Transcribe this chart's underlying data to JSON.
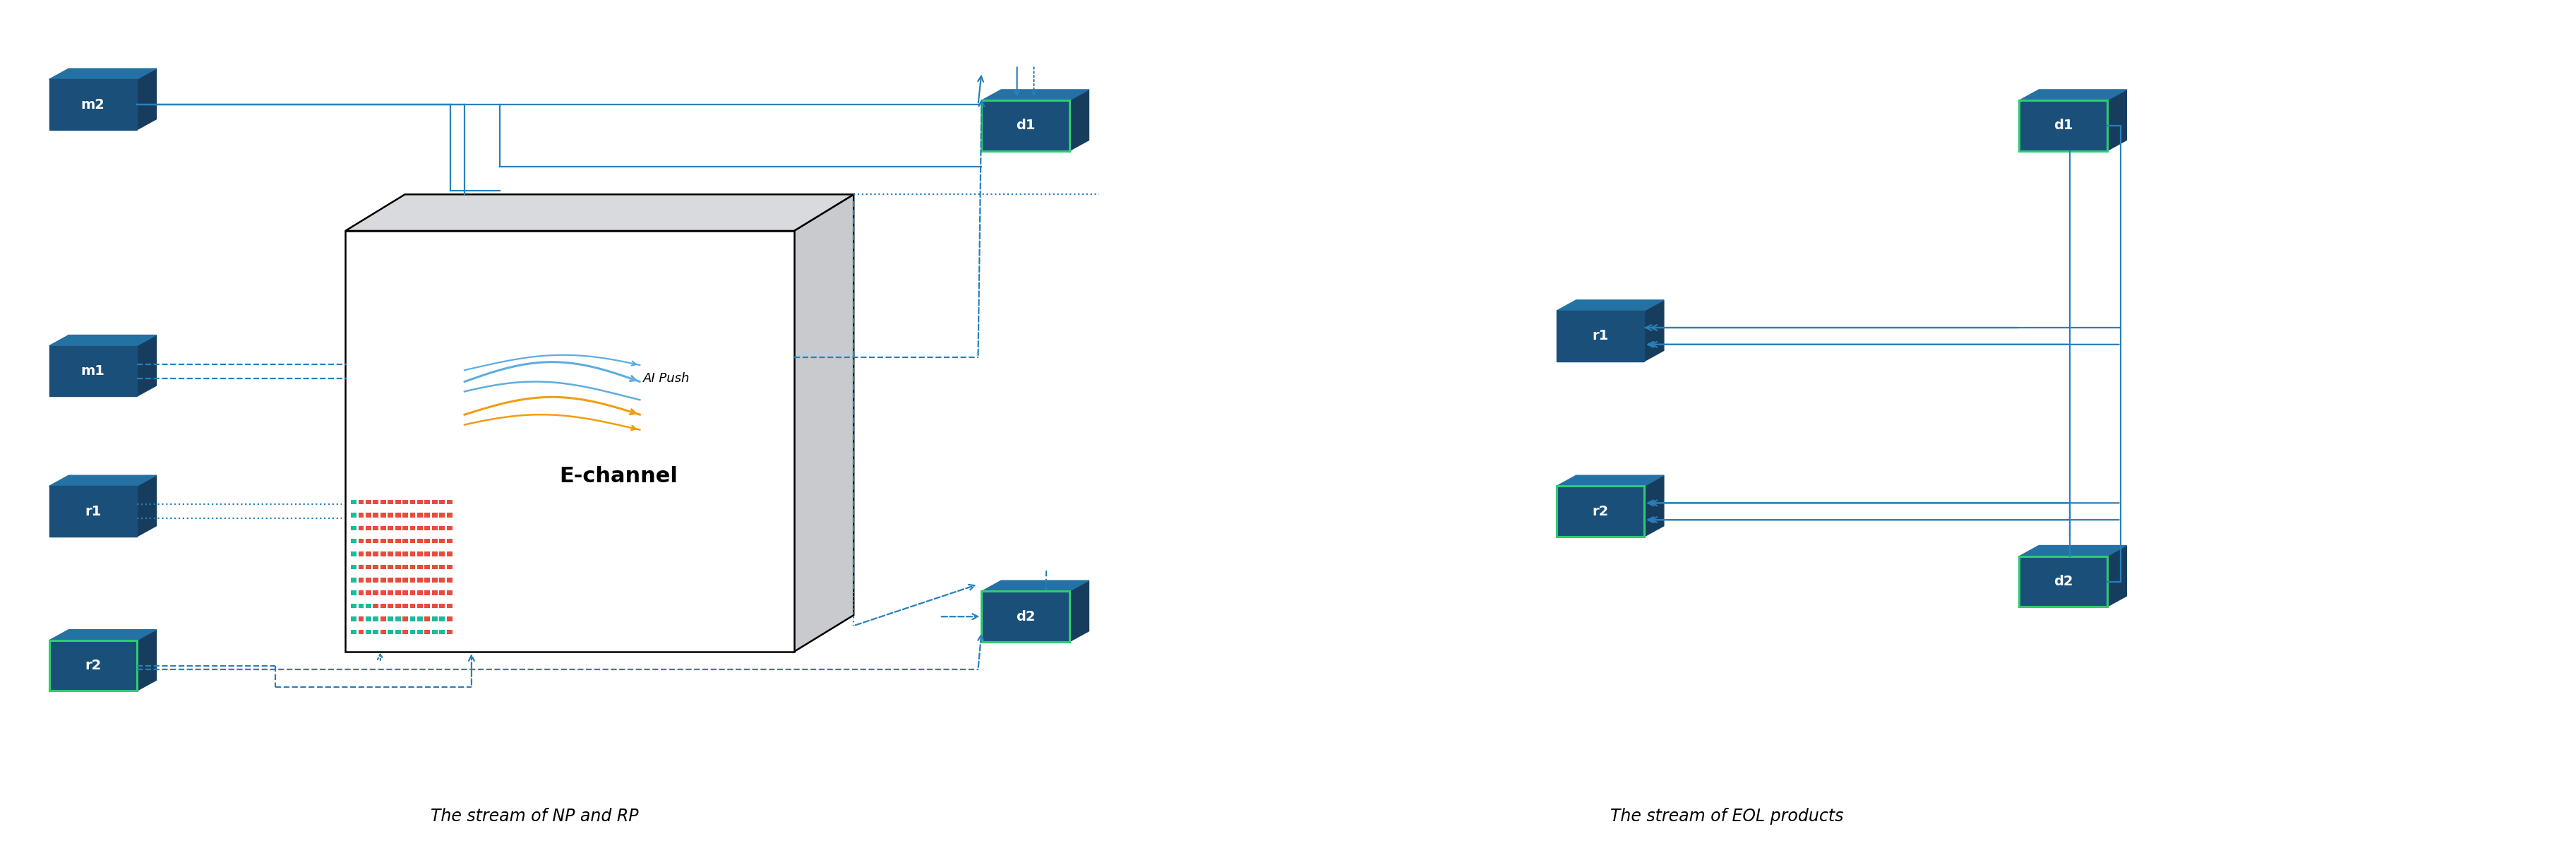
{
  "fig_width": 36.49,
  "fig_height": 12.25,
  "bg_color": "#ffffff",
  "dark_blue": "#1a4f7a",
  "dark_blue2": "#1d5f8a",
  "mid_blue": "#2471a3",
  "light_blue": "#2980b9",
  "green_edge": "#2ecc71",
  "teal_sq": "#1abc9c",
  "red_sq": "#e74c3c",
  "orange_arrow": "#f39c12",
  "sky_blue_arrow": "#5dade2",
  "title1": "The stream of NP and RP",
  "title2": "The stream of EOL products",
  "echannel_label": "E-channel",
  "ai_push_label": "AI Push"
}
